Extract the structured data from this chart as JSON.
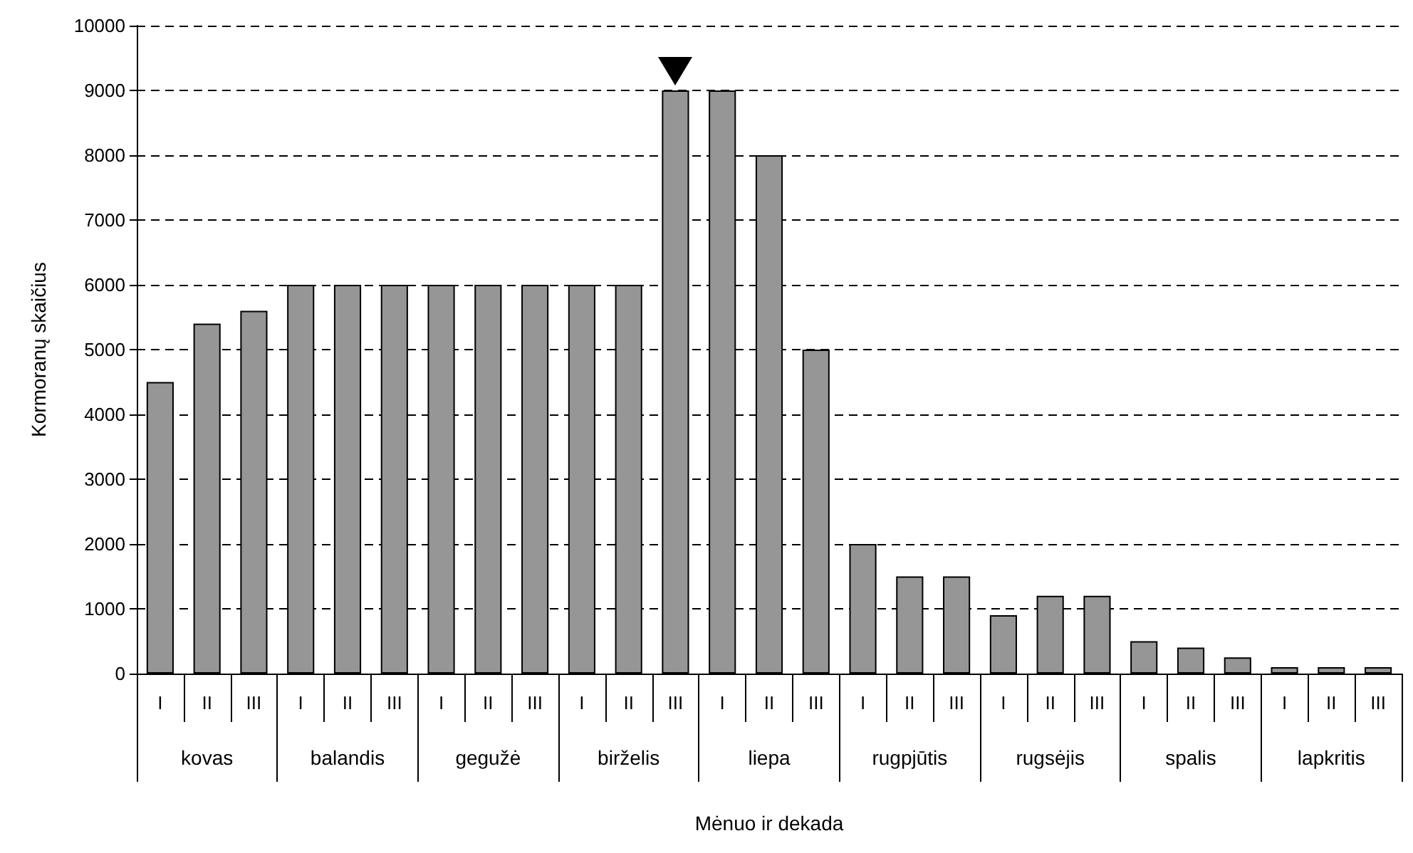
{
  "chart_data": {
    "type": "bar",
    "xlabel": "Mėnuo ir dekada",
    "ylabel": "Kormoranų skaičius",
    "categories": [
      "I",
      "II",
      "III",
      "I",
      "II",
      "III",
      "I",
      "II",
      "III",
      "I",
      "II",
      "III",
      "I",
      "II",
      "III",
      "I",
      "II",
      "III",
      "I",
      "II",
      "III",
      "I",
      "II",
      "III",
      "I",
      "II",
      "III"
    ],
    "values": [
      4500,
      5400,
      5600,
      6000,
      6000,
      6000,
      6000,
      6000,
      6000,
      6000,
      6000,
      9000,
      9000,
      8000,
      5000,
      2000,
      1500,
      1500,
      900,
      1200,
      1200,
      500,
      400,
      250,
      100,
      100,
      100
    ],
    "color": "#969696",
    "annotations": [
      "kovas",
      "balandis",
      "gegužė",
      "birželis",
      "liepa",
      "rugpjūtis",
      "rugsėjis",
      "spalis",
      "lapkritis"
    ],
    "ylim": [
      0,
      10000
    ],
    "yticks": [
      0,
      1000,
      2000,
      3000,
      4000,
      5000,
      6000,
      7000,
      8000,
      9000,
      10000
    ],
    "grid": "y"
  }
}
